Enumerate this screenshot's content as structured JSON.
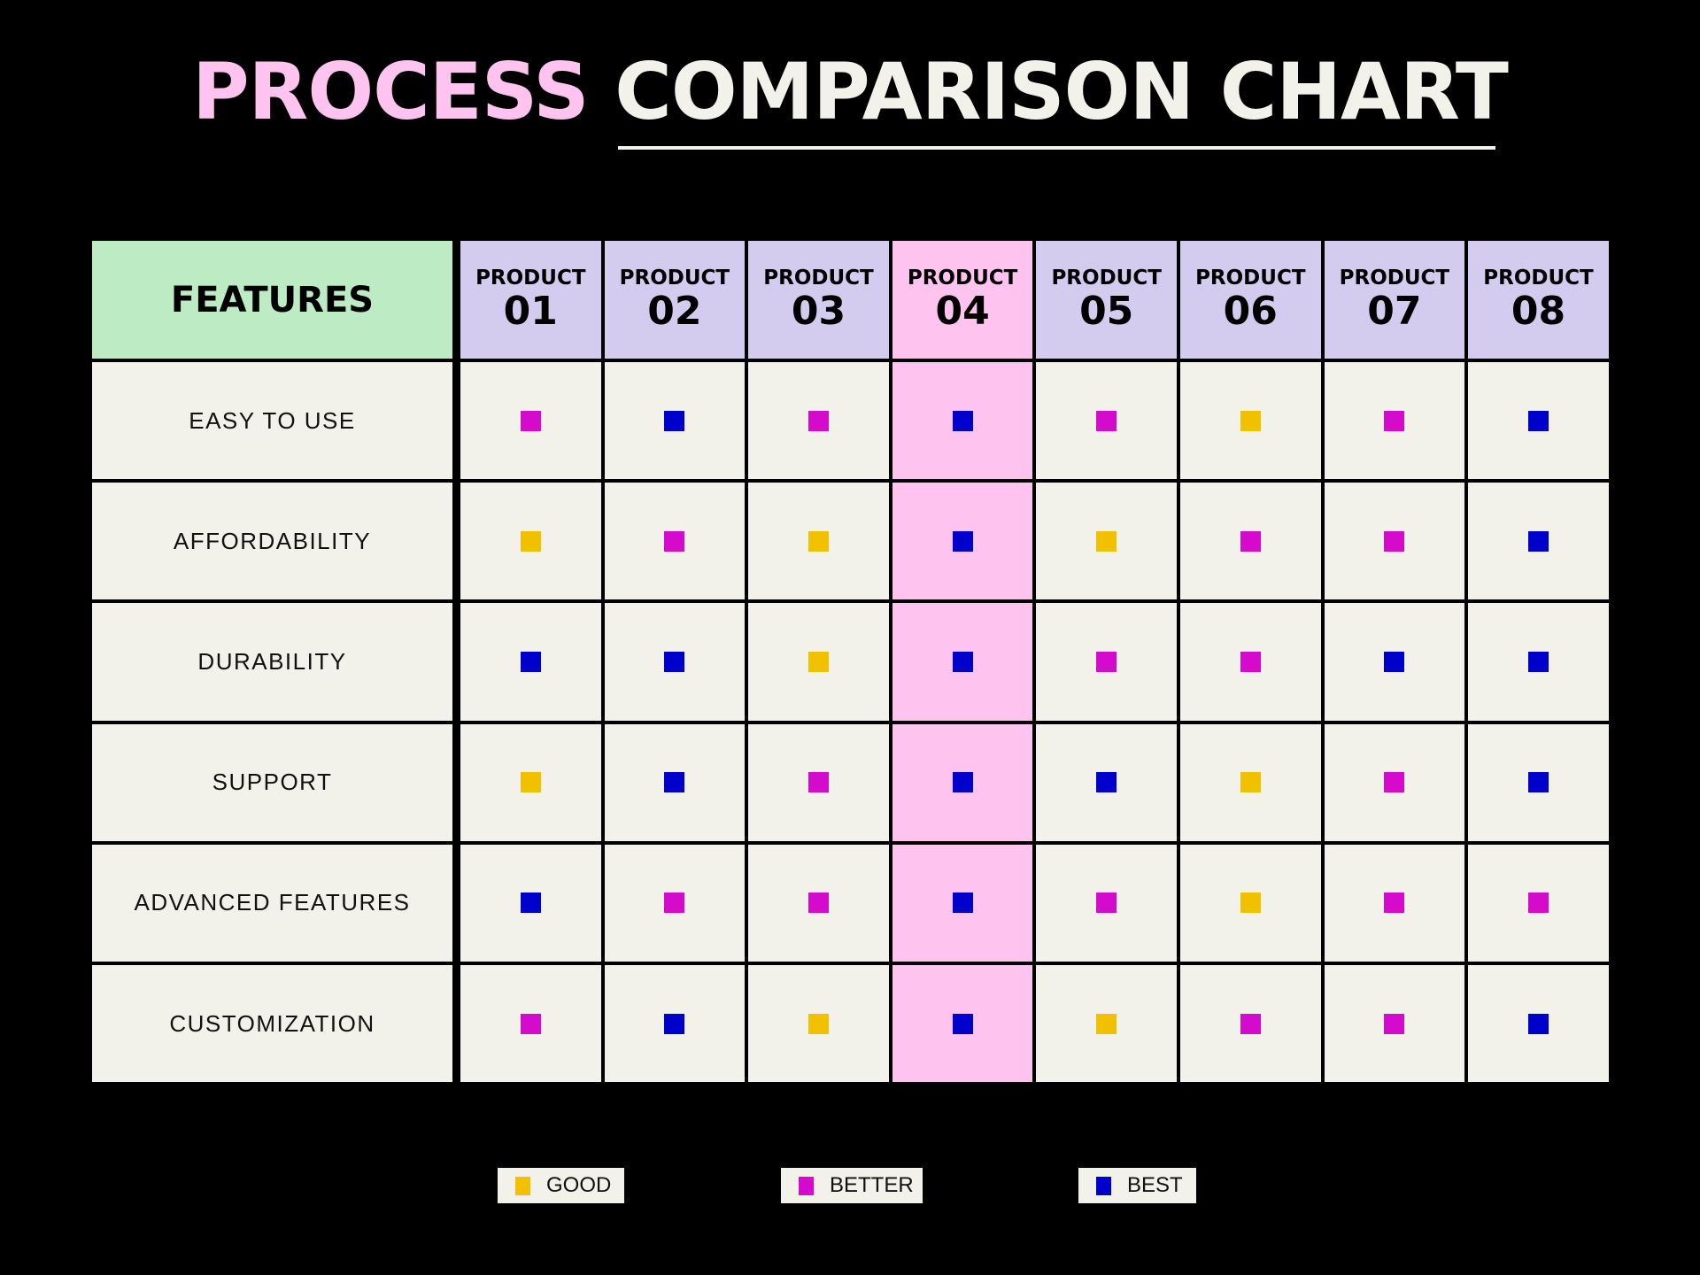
{
  "title": {
    "part1": "PROCESS",
    "part2": "COMPARISON CHART"
  },
  "colors": {
    "good": "#f1c100",
    "better": "#d40bcc",
    "best": "#0000cc",
    "highlight": "#ffc3ef",
    "header": "#d3ccef",
    "features_header": "#bdebc4",
    "cell": "#f2f1ea"
  },
  "chart_data": {
    "type": "table",
    "title": "PROCESS COMPARISON CHART",
    "row_header": "FEATURES",
    "columns": [
      {
        "label": "PRODUCT",
        "number": "01"
      },
      {
        "label": "PRODUCT",
        "number": "02"
      },
      {
        "label": "PRODUCT",
        "number": "03"
      },
      {
        "label": "PRODUCT",
        "number": "04",
        "highlighted": true
      },
      {
        "label": "PRODUCT",
        "number": "05"
      },
      {
        "label": "PRODUCT",
        "number": "06"
      },
      {
        "label": "PRODUCT",
        "number": "07"
      },
      {
        "label": "PRODUCT",
        "number": "08"
      }
    ],
    "rows": [
      {
        "feature": "EASY TO USE",
        "ratings": [
          "better",
          "best",
          "better",
          "best",
          "better",
          "good",
          "better",
          "best"
        ]
      },
      {
        "feature": "AFFORDABILITY",
        "ratings": [
          "good",
          "better",
          "good",
          "best",
          "good",
          "better",
          "better",
          "best"
        ]
      },
      {
        "feature": "DURABILITY",
        "ratings": [
          "best",
          "best",
          "good",
          "best",
          "better",
          "better",
          "best",
          "best"
        ]
      },
      {
        "feature": "SUPPORT",
        "ratings": [
          "good",
          "best",
          "better",
          "best",
          "best",
          "good",
          "better",
          "best"
        ]
      },
      {
        "feature": "ADVANCED FEATURES",
        "ratings": [
          "best",
          "better",
          "better",
          "best",
          "better",
          "good",
          "better",
          "better"
        ]
      },
      {
        "feature": "CUSTOMIZATION",
        "ratings": [
          "better",
          "best",
          "good",
          "best",
          "good",
          "better",
          "better",
          "best"
        ]
      }
    ],
    "legend": [
      {
        "key": "good",
        "label": "GOOD"
      },
      {
        "key": "better",
        "label": "BETTER"
      },
      {
        "key": "best",
        "label": "BEST"
      }
    ],
    "legend_position": "bottom"
  }
}
